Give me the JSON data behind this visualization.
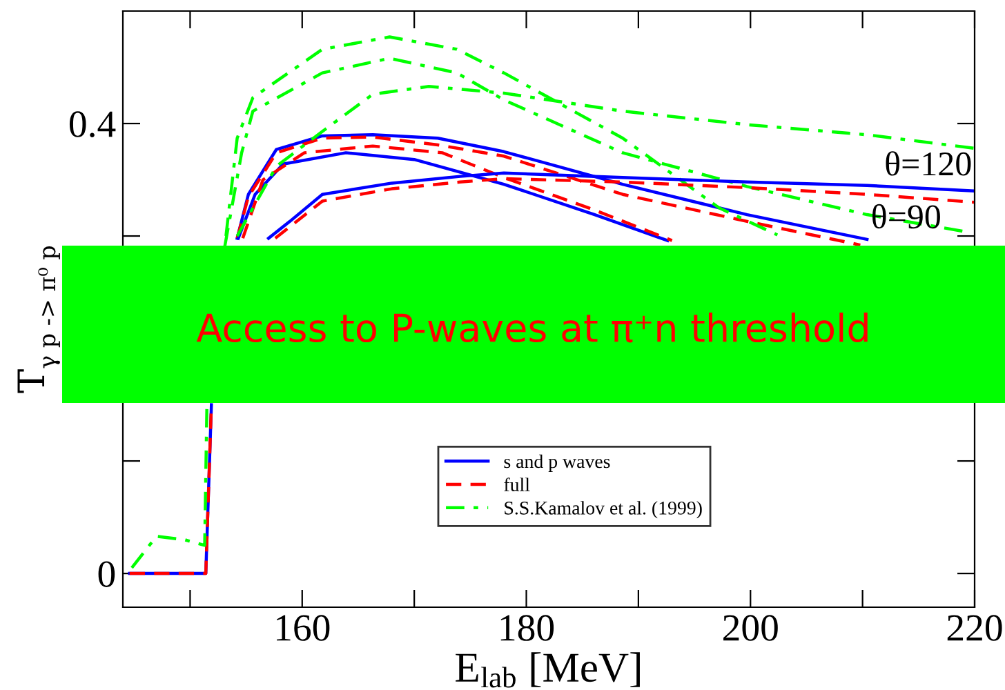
{
  "chart_data": {
    "type": "line",
    "xlabel": "E$_{lab}$ [MeV]",
    "ylabel": "T$_{γ p -> π⁰ p}$",
    "xlim": [
      144,
      220
    ],
    "ylim": [
      -0.03,
      0.5
    ],
    "xticks": [
      {
        "value": 150,
        "label": null
      },
      160,
      {
        "value": 170,
        "label": null
      },
      180,
      {
        "value": 190,
        "label": null
      },
      200,
      {
        "value": 210,
        "label": null
      },
      220
    ],
    "yticks": [
      0,
      {
        "value": 0.1,
        "label": null
      },
      {
        "value": 0.2,
        "label": null
      },
      {
        "value": 0.3,
        "label": null
      },
      0.4
    ],
    "grid": false,
    "legend": "bottom",
    "annotations": [
      {
        "text": "θ=120",
        "x": 211.6,
        "y": 0.344
      },
      {
        "text": "θ=90",
        "x": 210.4,
        "y": 0.297
      },
      "Access to P-waves at π⁺n threshold"
    ],
    "series": [
      {
        "name": "s and p waves",
        "color": "#0000ff",
        "line_style": "solid",
        "x": [
          144.6,
          151.4,
          151.9,
          152.5,
          154.2,
          155.2,
          157.7,
          161.8,
          166.3,
          172.1,
          178.0,
          188.6,
          199.7,
          210.4
        ],
        "values": [
          0,
          0,
          0.15,
          null,
          0.298,
          0.337,
          0.377,
          0.389,
          0.39,
          0.387,
          0.375,
          0.346,
          0.319,
          0.297
        ]
      },
      {
        "name": "full",
        "color": "#ff0000",
        "line_style": "dashed",
        "x": [
          144.6,
          151.4,
          151.9,
          152.5,
          154.2,
          155.2,
          157.7,
          161.8,
          166.3,
          172.1,
          178.0,
          188.6,
          199.7,
          209.8
        ],
        "values": [
          0,
          0,
          0.15,
          null,
          0.298,
          0.335,
          0.374,
          0.387,
          0.388,
          0.381,
          0.371,
          0.337,
          0.313,
          0.292
        ]
      },
      {
        "name": "S.S.Kamalov et al. (1999)",
        "color": "#00ff00",
        "line_style": "dashdot",
        "x": [
          144.8,
          147,
          149.5,
          151.3,
          151.5,
          152.5,
          153.1,
          154.6,
          155.6,
          161.8,
          167.8,
          173.8,
          178.0,
          188.6,
          199.7,
          210.4,
          219.1
        ],
        "values": [
          0.005,
          0.033,
          0.03,
          0.025,
          0.15,
          null,
          0.291,
          0.374,
          0.411,
          0.445,
          0.458,
          0.445,
          0.421,
          0.374,
          0.344,
          0.319,
          0.304
        ]
      },
      {
        "color": "#0000ff",
        "line_style": "solid",
        "x": [
          154.3,
          155.8,
          158.3,
          163.9,
          170.0,
          178.0,
          186.1,
          192.6
        ],
        "values": [
          0.298,
          0.337,
          0.364,
          0.374,
          0.368,
          0.346,
          0.319,
          0.296
        ]
      },
      {
        "color": "#ff0000",
        "line_style": "dashed",
        "x": [
          154.7,
          156.5,
          160.2,
          166.3,
          172.5,
          178.0,
          186.1,
          193.0
        ],
        "values": [
          0.298,
          0.35,
          0.374,
          0.38,
          0.374,
          0.352,
          0.323,
          0.296
        ]
      },
      {
        "color": "#00ff00",
        "line_style": "dashdot",
        "x": [
          153.2,
          154.2,
          155.6,
          161.8,
          167.8,
          173.8,
          178.0,
          188.6,
          197.2,
          202.4
        ],
        "values": [
          0.3,
          0.387,
          0.423,
          0.466,
          0.477,
          0.466,
          0.445,
          0.387,
          0.325,
          0.301
        ]
      },
      {
        "color": "#0000ff",
        "line_style": "solid",
        "x": [
          157.0,
          158.9,
          161.8,
          168.0,
          174.1,
          178.0,
          188.6,
          199.7,
          210.4,
          220
        ],
        "values": [
          0.298,
          0.313,
          0.337,
          0.347,
          0.353,
          0.356,
          0.352,
          0.348,
          0.345,
          0.34
        ]
      },
      {
        "color": "#ff0000",
        "line_style": "dashed",
        "x": [
          157.6,
          161.8,
          168.0,
          174.1,
          178.0,
          188.6,
          199.7,
          210.4,
          220
        ],
        "values": [
          0.298,
          0.331,
          0.342,
          0.348,
          0.351,
          0.348,
          0.343,
          0.337,
          0.33
        ]
      },
      {
        "color": "#00ff00",
        "line_style": "dashdot",
        "x": [
          154.2,
          157.7,
          161.8,
          166.3,
          171.3,
          178.0,
          188.6,
          199.7,
          210.4,
          220
        ],
        "values": [
          0.3,
          0.362,
          0.393,
          0.426,
          0.433,
          0.427,
          0.411,
          0.399,
          0.39,
          0.378
        ]
      }
    ]
  }
}
